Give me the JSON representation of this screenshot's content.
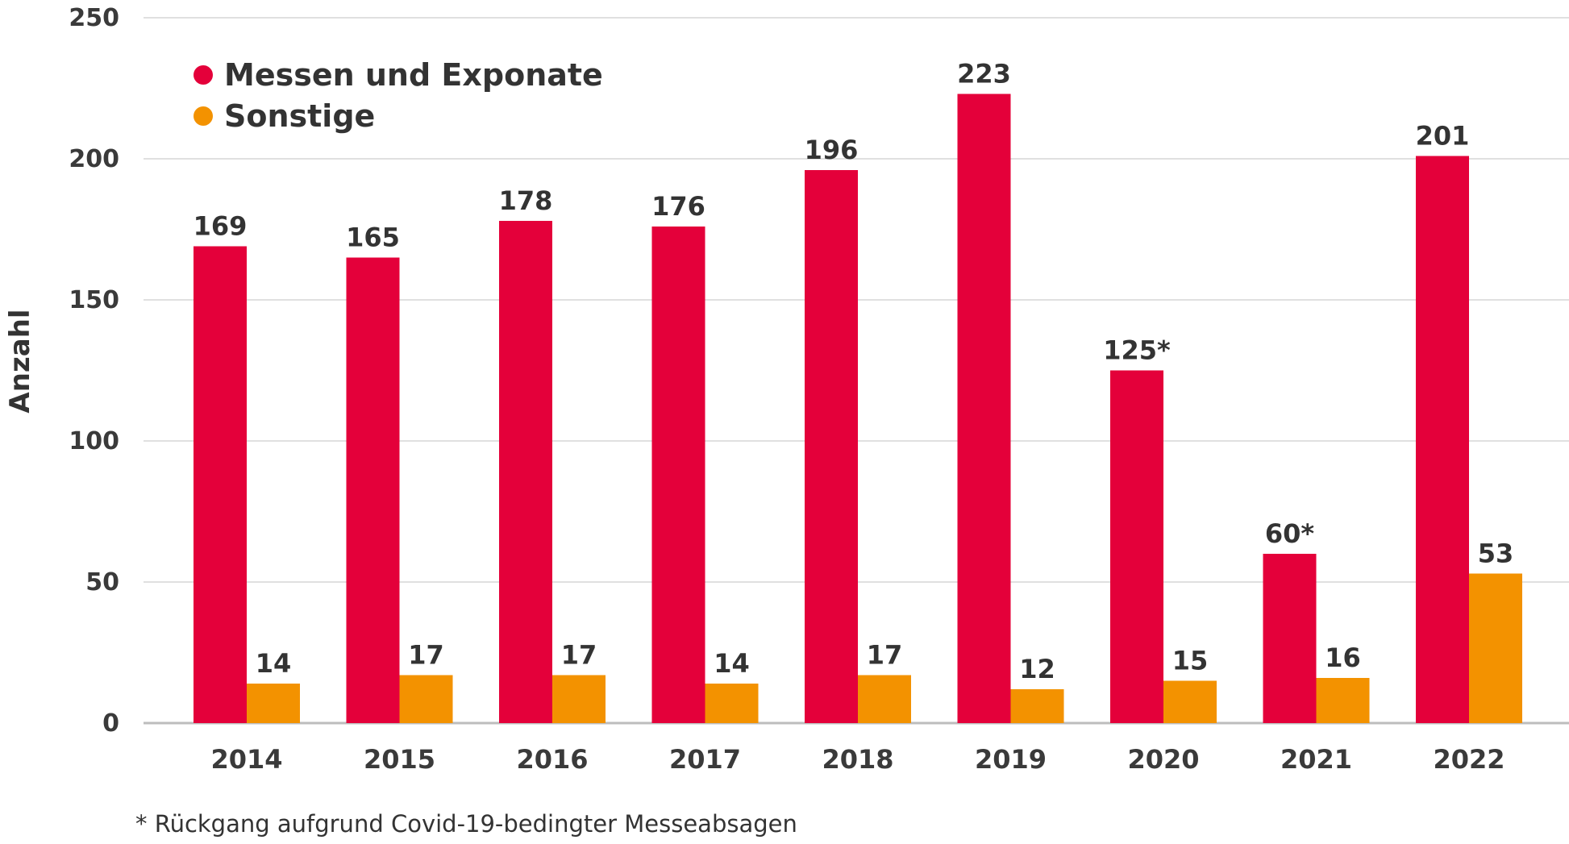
{
  "chart_data": {
    "type": "bar",
    "ylabel": "Anzahl",
    "ylim": [
      0,
      250
    ],
    "yticks": [
      "0",
      "50",
      "100",
      "150",
      "200",
      "250"
    ],
    "categories": [
      "2014",
      "2015",
      "2016",
      "2017",
      "2018",
      "2019",
      "2020",
      "2021",
      "2022"
    ],
    "legend_position": "top-left",
    "grid": "horizontal",
    "series": [
      {
        "name": "Messen und Exponate",
        "color": "#e4003a",
        "values": [
          169,
          165,
          178,
          176,
          196,
          223,
          125,
          60,
          201
        ],
        "labels": [
          "169",
          "165",
          "178",
          "176",
          "196",
          "223",
          "125*",
          "60*",
          "201"
        ]
      },
      {
        "name": "Sonstige",
        "color": "#f39200",
        "values": [
          14,
          17,
          17,
          14,
          17,
          12,
          15,
          16,
          53
        ],
        "labels": [
          "14",
          "17",
          "17",
          "14",
          "17",
          "12",
          "15",
          "16",
          "53"
        ]
      }
    ],
    "footnote": "* Rückgang aufgrund Covid-19-bedingter Messeabsagen"
  }
}
